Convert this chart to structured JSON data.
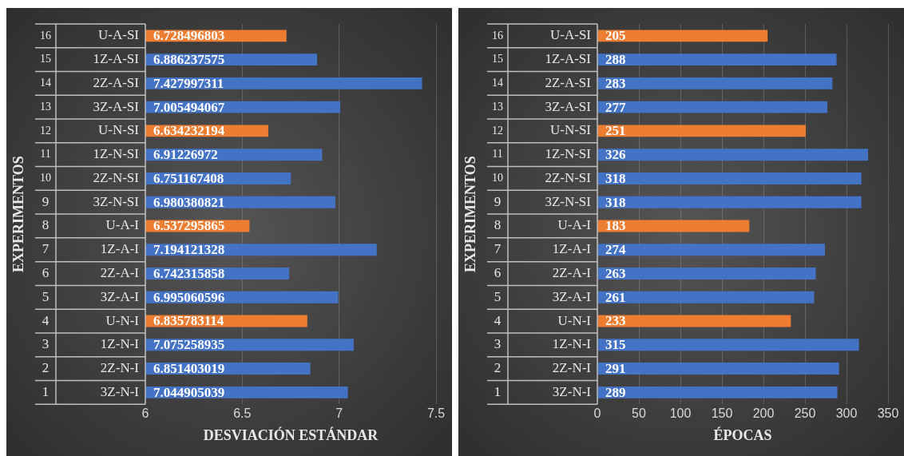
{
  "chart_data": [
    {
      "type": "bar",
      "orientation": "horizontal",
      "xlabel": "DESVIACIÓN ESTÁNDAR",
      "ylabel": "EXPERIMENTOS",
      "categories": [
        "16 U-A-SI",
        "15 1Z-A-SI",
        "14 2Z-A-SI",
        "13 3Z-A-SI",
        "12 U-N-SI",
        "11 1Z-N-SI",
        "10 2Z-N-SI",
        "9 3Z-N-SI",
        "8 U-A-I",
        "7 1Z-A-I",
        "6 2Z-A-I",
        "5 3Z-A-I",
        "4 U-N-I",
        "3 1Z-N-I",
        "2 2Z-N-I",
        "1 3Z-N-I"
      ],
      "values": [
        6.728496803,
        6.886237575,
        7.427997311,
        7.005494067,
        6.634232194,
        6.91226972,
        6.751167408,
        6.980380821,
        6.537295865,
        7.194121328,
        6.742315858,
        6.995060596,
        6.835783114,
        7.075258935,
        6.851403019,
        7.044905039
      ],
      "colors": [
        "#ed7d31",
        "#4472c4",
        "#4472c4",
        "#4472c4",
        "#ed7d31",
        "#4472c4",
        "#4472c4",
        "#4472c4",
        "#ed7d31",
        "#4472c4",
        "#4472c4",
        "#4472c4",
        "#ed7d31",
        "#4472c4",
        "#4472c4",
        "#4472c4"
      ],
      "xlim": [
        6,
        7.5
      ],
      "xticks": [
        6,
        6.5,
        7,
        7.5
      ],
      "grid": "x",
      "data_labels": true
    },
    {
      "type": "bar",
      "orientation": "horizontal",
      "xlabel": "ÉPOCAS",
      "ylabel": "EXPERIMENTOS",
      "categories": [
        "16 U-A-SI",
        "15 1Z-A-SI",
        "14 2Z-A-SI",
        "13 3Z-A-SI",
        "12 U-N-SI",
        "11 1Z-N-SI",
        "10 2Z-N-SI",
        "9 3Z-N-SI",
        "8 U-A-I",
        "7 1Z-A-I",
        "6 2Z-A-I",
        "5 3Z-A-I",
        "4 U-N-I",
        "3 1Z-N-I",
        "2 2Z-N-I",
        "1 3Z-N-I"
      ],
      "values": [
        205,
        288,
        283,
        277,
        251,
        326,
        318,
        318,
        183,
        274,
        263,
        261,
        233,
        315,
        291,
        289
      ],
      "colors": [
        "#ed7d31",
        "#4472c4",
        "#4472c4",
        "#4472c4",
        "#ed7d31",
        "#4472c4",
        "#4472c4",
        "#4472c4",
        "#ed7d31",
        "#4472c4",
        "#4472c4",
        "#4472c4",
        "#ed7d31",
        "#4472c4",
        "#4472c4",
        "#4472c4"
      ],
      "xlim": [
        0,
        350
      ],
      "xticks": [
        0,
        50,
        100,
        150,
        200,
        250,
        300,
        350
      ],
      "grid": "x",
      "data_labels": true
    }
  ]
}
